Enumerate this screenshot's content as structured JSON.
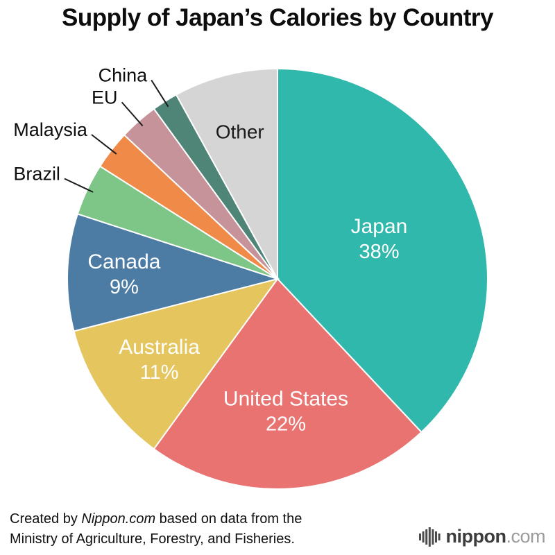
{
  "title": "Supply of Japan’s Calories by Country",
  "footer": {
    "created_prefix": "Created by ",
    "source": "Nippon.com",
    "created_suffix": " based on data from the",
    "line2": "Ministry of Agriculture, Forestry, and Fisheries.",
    "logo_name": "nippon",
    "logo_tld": ".com"
  },
  "chart_data": {
    "type": "pie",
    "title": "Supply of Japan’s Calories by Country",
    "start_angle_deg": 0,
    "direction": "clockwise",
    "units": "%",
    "slices": [
      {
        "label": "Japan",
        "value": 38,
        "percent_shown": true,
        "estimated": false,
        "color": "#31b8ac",
        "label_style": "inside-light"
      },
      {
        "label": "United States",
        "value": 22,
        "percent_shown": true,
        "estimated": false,
        "color": "#e87370",
        "label_style": "inside-light"
      },
      {
        "label": "Australia",
        "value": 11,
        "percent_shown": true,
        "estimated": false,
        "color": "#e4c55e",
        "label_style": "inside-light"
      },
      {
        "label": "Canada",
        "value": 9,
        "percent_shown": true,
        "estimated": false,
        "color": "#4c7ca4",
        "label_style": "inside-light"
      },
      {
        "label": "Brazil",
        "value": 4,
        "percent_shown": false,
        "estimated": true,
        "color": "#7ec687",
        "label_style": "outside"
      },
      {
        "label": "Malaysia",
        "value": 3,
        "percent_shown": false,
        "estimated": true,
        "color": "#ef8a48",
        "label_style": "outside"
      },
      {
        "label": "EU",
        "value": 3,
        "percent_shown": false,
        "estimated": true,
        "color": "#c6939a",
        "label_style": "outside"
      },
      {
        "label": "China",
        "value": 2,
        "percent_shown": false,
        "estimated": true,
        "color": "#4e8577",
        "label_style": "outside"
      },
      {
        "label": "Other",
        "value": 8,
        "percent_shown": false,
        "estimated": true,
        "color": "#d5d5d5",
        "label_style": "inside-dark"
      }
    ]
  }
}
